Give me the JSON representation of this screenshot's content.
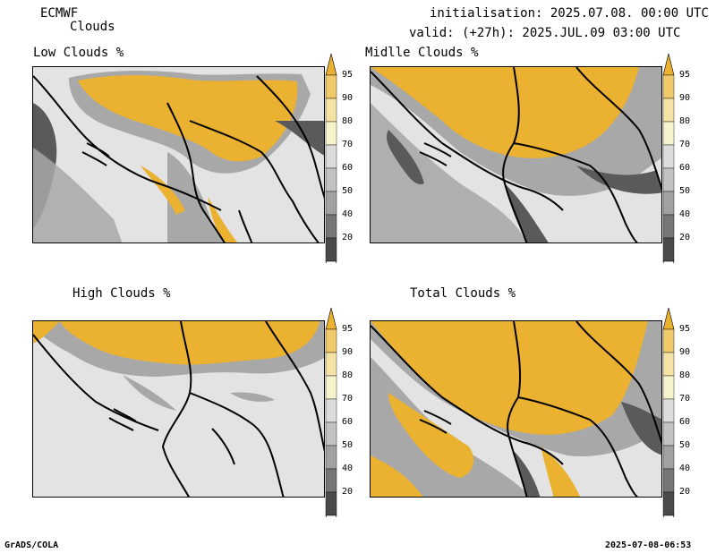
{
  "header": {
    "model": "ECMWF",
    "product": "Clouds",
    "init": "initialisation: 2025.07.08. 00:00 UTC",
    "valid": "valid: (+27h): 2025.JUL.09 03:00 UTC"
  },
  "panels": [
    {
      "title": "Low Clouds %"
    },
    {
      "title": "Midlle Clouds %"
    },
    {
      "title": "High Clouds %"
    },
    {
      "title": "Total Clouds %"
    }
  ],
  "colorbar": {
    "labels": [
      "95",
      "90",
      "80",
      "70",
      "60",
      "50",
      "40",
      "20"
    ],
    "colors": [
      "#ebb130",
      "#f0c96b",
      "#f5e3a6",
      "#f5f3cc",
      "#dcdcdc",
      "#c2c2c2",
      "#a1a1a1",
      "#767676",
      "#4a4a4a",
      "#ffffff"
    ]
  },
  "colors": {
    "land": "#e3e3e3",
    "dark": "#5a5a5a",
    "mid": "#a8a8a8",
    "light": "#c8c8c8",
    "yellow": "#ebb130",
    "pale": "#f5e3a6"
  },
  "footer": {
    "left": "GrADS/COLA",
    "right": "2025-07-08-06:53"
  }
}
